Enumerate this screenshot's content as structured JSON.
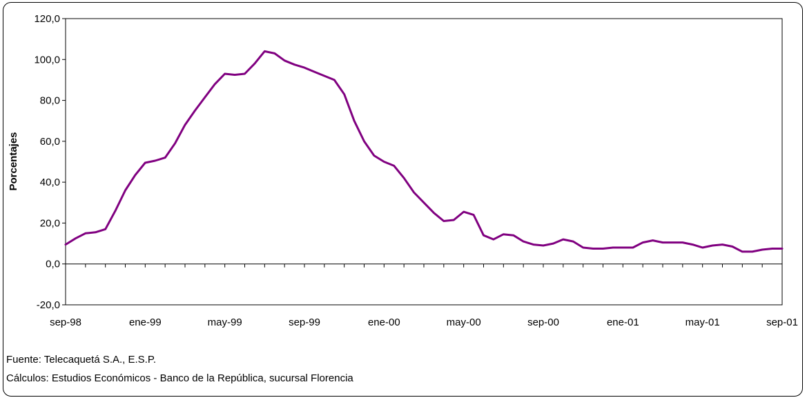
{
  "chart_data": {
    "type": "line",
    "title": "",
    "xlabel": "",
    "ylabel": "Porcentajes",
    "ylim": [
      -20,
      120
    ],
    "yticks": [
      -20,
      0,
      20,
      40,
      60,
      80,
      100,
      120
    ],
    "ytick_labels": [
      "-20,0",
      "0,0",
      "20,0",
      "40,0",
      "60,0",
      "80,0",
      "100,0",
      "120,0"
    ],
    "xlim": [
      0,
      36
    ],
    "xticks": [
      0,
      4,
      8,
      12,
      16,
      20,
      24,
      28,
      32,
      36
    ],
    "xtick_labels": [
      "sep-98",
      "ene-99",
      "may-99",
      "sep-99",
      "ene-00",
      "may-00",
      "sep-00",
      "ene-01",
      "may-01",
      "sep-01"
    ],
    "x_period": "monthly, sep-98 to sep-01",
    "grid": false,
    "series": [
      {
        "name": "",
        "color": "#800080",
        "x": [
          0,
          0.5,
          1,
          1.5,
          2,
          2.5,
          3,
          3.5,
          4,
          4.5,
          5,
          5.5,
          6,
          6.5,
          7,
          7.5,
          8,
          8.5,
          9,
          9.5,
          10,
          10.5,
          11,
          11.5,
          12,
          12.5,
          13,
          13.5,
          14,
          14.5,
          15,
          15.5,
          16,
          16.5,
          17,
          17.5,
          18,
          18.5,
          19,
          19.5,
          20,
          20.5,
          21,
          21.5,
          22,
          22.5,
          23,
          23.5,
          24,
          24.5,
          25,
          25.5,
          26,
          26.5,
          27,
          27.5,
          28,
          28.5,
          29,
          29.5,
          30,
          30.5,
          31,
          31.5,
          32,
          32.5,
          33,
          33.5,
          34,
          34.5,
          35,
          35.5,
          36
        ],
        "y": [
          9.5,
          12.5,
          15,
          15.5,
          17,
          26,
          36,
          43.5,
          49.5,
          50.5,
          52,
          59,
          68,
          75,
          81.5,
          88,
          93,
          92.5,
          93,
          98,
          104,
          103,
          99.5,
          97.5,
          96,
          94,
          92,
          90,
          83,
          70,
          60,
          53,
          50,
          48,
          42,
          35,
          30,
          25,
          21,
          21.5,
          25.5,
          24,
          14,
          12,
          14.5,
          14,
          11,
          9.5,
          9,
          10,
          12,
          11,
          8,
          7.5,
          7.5,
          8,
          8,
          8,
          10.5,
          11.5,
          10.5,
          10.5,
          10.5,
          9.5,
          8,
          9,
          9.5,
          8.5,
          6,
          6,
          7,
          7.5,
          7.5
        ]
      }
    ]
  },
  "notes": {
    "source": "Fuente: Telecaquetá S.A., E.S.P.",
    "calc": "Cálculos:  Estudios Económicos - Banco de la República, sucursal Florencia"
  }
}
